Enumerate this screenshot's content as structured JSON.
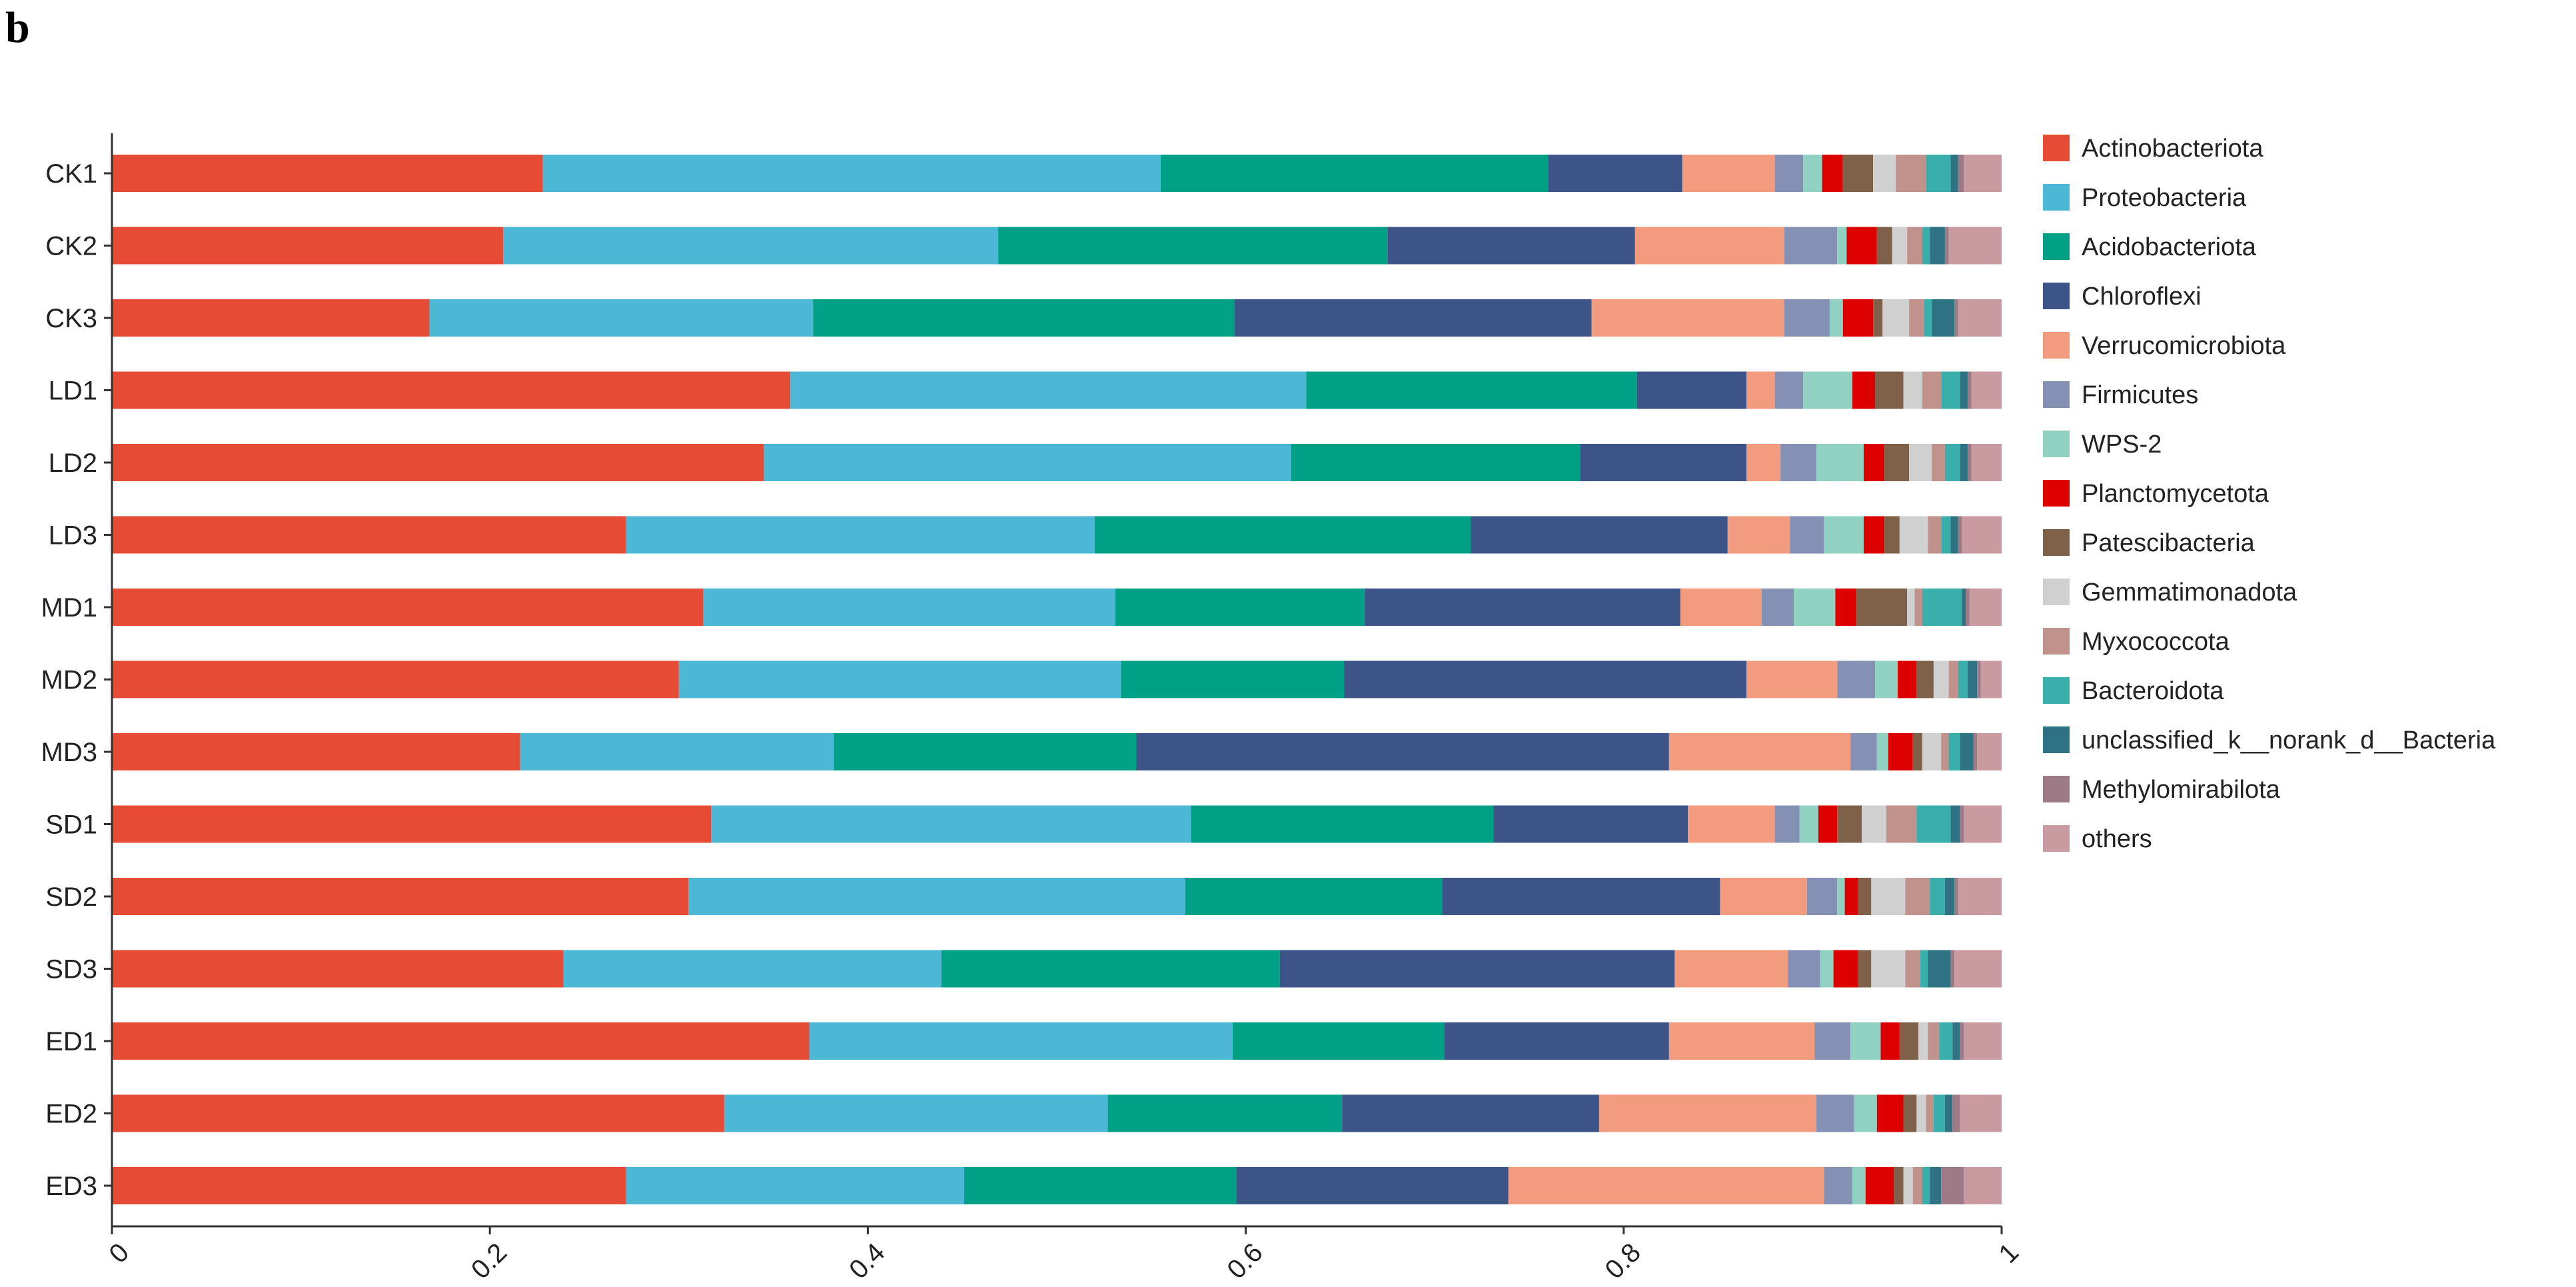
{
  "panel_label": "b",
  "chart_data": {
    "type": "bar",
    "orientation": "horizontal",
    "stacked": true,
    "xlim": [
      0,
      1
    ],
    "xticks": [
      "0",
      "0.2",
      "0.4",
      "0.6",
      "0.8",
      "1"
    ],
    "xtick_values": [
      0,
      0.2,
      0.4,
      0.6,
      0.8,
      1
    ],
    "legend_position": "right",
    "grid": false,
    "categories": [
      "CK1",
      "CK2",
      "CK3",
      "LD1",
      "LD2",
      "LD3",
      "MD1",
      "MD2",
      "MD3",
      "SD1",
      "SD2",
      "SD3",
      "ED1",
      "ED2",
      "ED3"
    ],
    "series": [
      {
        "name": "Actinobacteriota",
        "color": "#e64b35",
        "values": [
          0.228,
          0.207,
          0.168,
          0.359,
          0.345,
          0.272,
          0.313,
          0.3,
          0.216,
          0.317,
          0.305,
          0.239,
          0.369,
          0.324,
          0.272
        ]
      },
      {
        "name": "Proteobacteria",
        "color": "#4db8d6",
        "values": [
          0.327,
          0.262,
          0.203,
          0.273,
          0.279,
          0.248,
          0.218,
          0.234,
          0.166,
          0.254,
          0.263,
          0.2,
          0.224,
          0.203,
          0.179
        ]
      },
      {
        "name": "Acidobacteriota",
        "color": "#00a087",
        "values": [
          0.205,
          0.206,
          0.223,
          0.175,
          0.153,
          0.199,
          0.132,
          0.118,
          0.16,
          0.16,
          0.136,
          0.179,
          0.112,
          0.124,
          0.144
        ]
      },
      {
        "name": "Chloroflexi",
        "color": "#3c5488",
        "values": [
          0.071,
          0.131,
          0.189,
          0.058,
          0.088,
          0.136,
          0.167,
          0.213,
          0.282,
          0.103,
          0.147,
          0.209,
          0.119,
          0.136,
          0.144
        ]
      },
      {
        "name": "Verrucomicrobiota",
        "color": "#f39b7f",
        "values": [
          0.049,
          0.079,
          0.102,
          0.015,
          0.018,
          0.033,
          0.043,
          0.048,
          0.096,
          0.046,
          0.046,
          0.06,
          0.077,
          0.115,
          0.167
        ]
      },
      {
        "name": "Firmicutes",
        "color": "#8491b4",
        "values": [
          0.015,
          0.028,
          0.024,
          0.015,
          0.019,
          0.018,
          0.017,
          0.02,
          0.014,
          0.013,
          0.016,
          0.017,
          0.019,
          0.02,
          0.015
        ]
      },
      {
        "name": "WPS-2",
        "color": "#91d1c2",
        "values": [
          0.01,
          0.005,
          0.007,
          0.026,
          0.025,
          0.021,
          0.022,
          0.012,
          0.006,
          0.01,
          0.004,
          0.007,
          0.016,
          0.012,
          0.007
        ]
      },
      {
        "name": "Planctomycetota",
        "color": "#dc0000",
        "values": [
          0.011,
          0.016,
          0.016,
          0.012,
          0.011,
          0.011,
          0.011,
          0.01,
          0.013,
          0.01,
          0.007,
          0.013,
          0.01,
          0.014,
          0.015
        ]
      },
      {
        "name": "Patescibacteria",
        "color": "#7e6148",
        "values": [
          0.016,
          0.008,
          0.005,
          0.015,
          0.013,
          0.008,
          0.027,
          0.009,
          0.005,
          0.013,
          0.007,
          0.007,
          0.01,
          0.007,
          0.005
        ]
      },
      {
        "name": "Gemmatimonadota",
        "color": "#d0d0d0",
        "values": [
          0.012,
          0.008,
          0.014,
          0.01,
          0.012,
          0.015,
          0.004,
          0.008,
          0.01,
          0.013,
          0.018,
          0.018,
          0.005,
          0.005,
          0.005
        ]
      },
      {
        "name": "Myxococcota",
        "color": "#c1918c",
        "values": [
          0.016,
          0.008,
          0.008,
          0.01,
          0.007,
          0.007,
          0.004,
          0.005,
          0.004,
          0.016,
          0.013,
          0.008,
          0.006,
          0.004,
          0.005
        ]
      },
      {
        "name": "Bacteroidota",
        "color": "#3aaeaa",
        "values": [
          0.013,
          0.004,
          0.004,
          0.01,
          0.008,
          0.005,
          0.021,
          0.005,
          0.006,
          0.018,
          0.008,
          0.004,
          0.007,
          0.006,
          0.004
        ]
      },
      {
        "name": "unclassified_k__norank_d__Bacteria",
        "color": "#2e7284",
        "values": [
          0.004,
          0.008,
          0.012,
          0.004,
          0.004,
          0.004,
          0.002,
          0.005,
          0.007,
          0.005,
          0.005,
          0.012,
          0.004,
          0.004,
          0.006
        ]
      },
      {
        "name": "Methylomirabilota",
        "color": "#9c7a86",
        "values": [
          0.003,
          0.002,
          0.002,
          0.002,
          0.002,
          0.002,
          0.002,
          0.002,
          0.002,
          0.002,
          0.002,
          0.002,
          0.002,
          0.004,
          0.012
        ]
      },
      {
        "name": "others",
        "color": "#c99a9f",
        "values": [
          0.02,
          0.028,
          0.023,
          0.016,
          0.016,
          0.021,
          0.017,
          0.011,
          0.013,
          0.02,
          0.023,
          0.025,
          0.02,
          0.022,
          0.02
        ]
      }
    ]
  }
}
